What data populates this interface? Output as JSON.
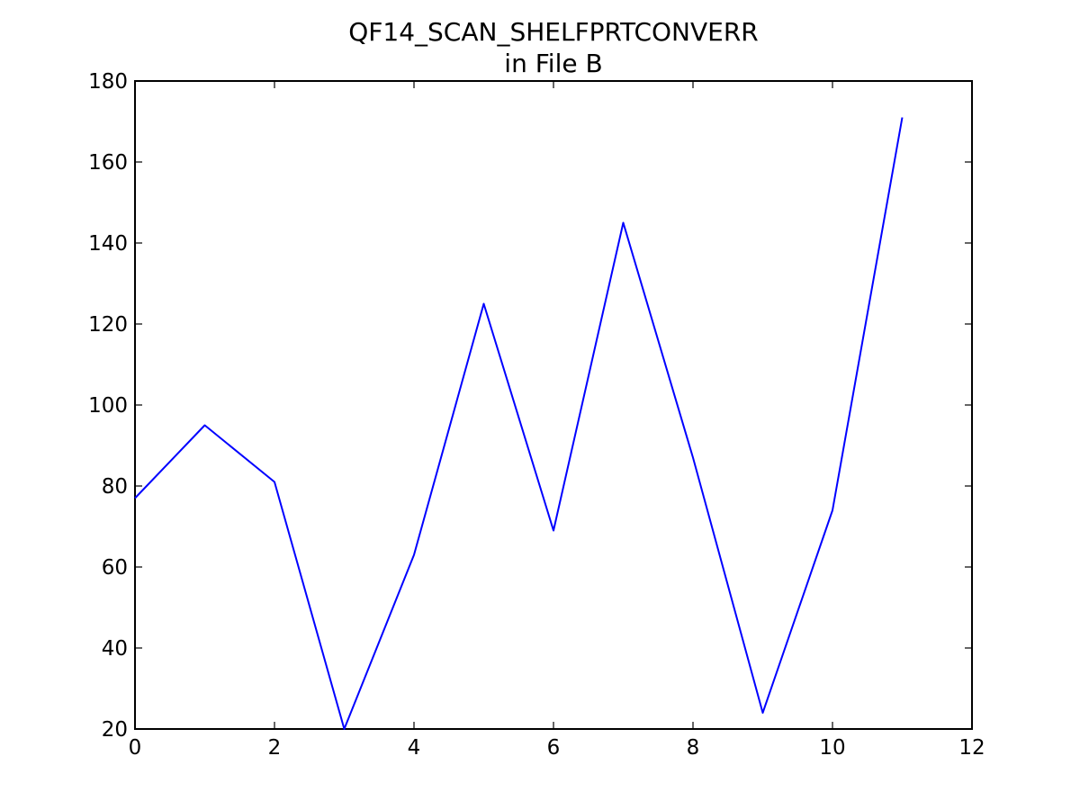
{
  "chart_data": {
    "type": "line",
    "title": "QF14_SCAN_SHELFPRTCONVERR",
    "subtitle": "in File B",
    "xlabel": "",
    "ylabel": "",
    "xlim": [
      0,
      12
    ],
    "ylim": [
      20,
      180
    ],
    "x_ticks": [
      0,
      2,
      4,
      6,
      8,
      10,
      12
    ],
    "y_ticks": [
      20,
      40,
      60,
      80,
      100,
      120,
      140,
      160,
      180
    ],
    "grid": false,
    "legend": "none",
    "series": [
      {
        "color": "#0000ff",
        "x": [
          0,
          1,
          2,
          3,
          4,
          5,
          6,
          7,
          8,
          9,
          10,
          11
        ],
        "values": [
          77,
          95,
          81,
          20,
          63,
          125,
          69,
          145,
          87,
          24,
          74,
          171
        ]
      }
    ]
  }
}
